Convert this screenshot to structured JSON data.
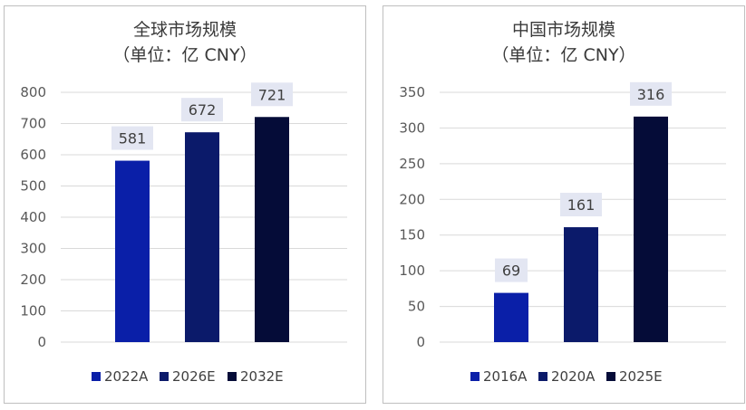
{
  "chart_data": [
    {
      "type": "bar",
      "title": "全球市场规模",
      "subtitle": "（单位：亿 CNY）",
      "categories": [
        "2022A",
        "2026E",
        "2032E"
      ],
      "values": [
        581,
        672,
        721
      ],
      "ylim": [
        0,
        800
      ],
      "yticks": [
        0,
        100,
        200,
        300,
        400,
        500,
        600,
        700,
        800
      ],
      "colors": [
        "#0a1fa8",
        "#0b1a6a",
        "#050c38"
      ],
      "legend": [
        "2022A",
        "2026E",
        "2032E"
      ],
      "legend_position": "bottom",
      "grid": true
    },
    {
      "type": "bar",
      "title": "中国市场规模",
      "subtitle": "（单位：亿 CNY）",
      "categories": [
        "2016A",
        "2020A",
        "2025E"
      ],
      "values": [
        69,
        161,
        316
      ],
      "ylim": [
        0,
        350
      ],
      "yticks": [
        0,
        50,
        100,
        150,
        200,
        250,
        300,
        350
      ],
      "colors": [
        "#0a1fa8",
        "#0b1a6a",
        "#050c38"
      ],
      "legend": [
        "2016A",
        "2020A",
        "2025E"
      ],
      "legend_position": "bottom",
      "grid": true
    }
  ]
}
